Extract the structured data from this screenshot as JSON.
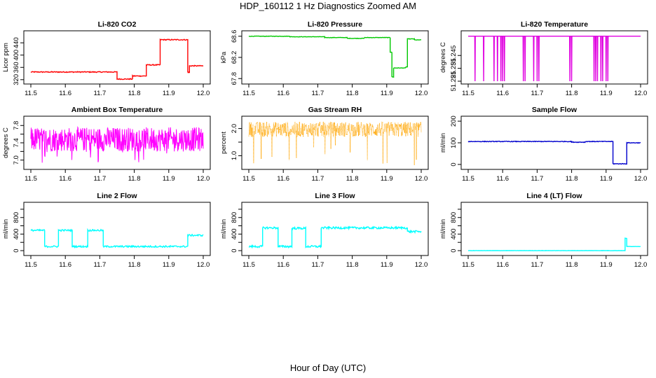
{
  "figure": {
    "title": "HDP_160112  1 Hz Diagnostics Zoomed AM",
    "xlabel": "Hour of Day (UTC)"
  },
  "chart_data": [
    {
      "type": "line",
      "title": "Li-820 CO2",
      "ylabel": "Licor ppm",
      "color": "#ff0000",
      "xlim": [
        11.5,
        12.0
      ],
      "ylim": [
        315,
        470
      ],
      "xticks": [
        11.5,
        11.6,
        11.7,
        11.8,
        11.9,
        12.0
      ],
      "xticklabels": [
        "11.5",
        "11.6",
        "11.7",
        "11.8",
        "11.9",
        "12.0"
      ],
      "yticks": [
        320,
        360,
        400,
        440
      ],
      "yticklabels": [
        "320",
        "360",
        "400",
        "440"
      ],
      "style": "step",
      "noise": 1.5,
      "x": [
        11.5,
        11.75,
        11.75,
        11.795,
        11.795,
        11.835,
        11.835,
        11.875,
        11.875,
        11.955,
        11.955,
        11.96,
        11.96,
        12.0
      ],
      "y": [
        345,
        345,
        322,
        322,
        332,
        332,
        368,
        368,
        450,
        450,
        344,
        344,
        365,
        365
      ]
    },
    {
      "type": "line",
      "title": "Li-820 Pressure",
      "ylabel": "kPa",
      "color": "#00c800",
      "xlim": [
        11.5,
        12.0
      ],
      "ylim": [
        67.75,
        68.65
      ],
      "xticks": [
        11.5,
        11.6,
        11.7,
        11.8,
        11.9,
        12.0
      ],
      "xticklabels": [
        "11.5",
        "11.6",
        "11.7",
        "11.8",
        "11.9",
        "12.0"
      ],
      "yticks": [
        67.8,
        68.2,
        68.6
      ],
      "yticklabels": [
        "67.8",
        "68.2",
        "68.6"
      ],
      "style": "step",
      "noise": 0.004,
      "x": [
        11.5,
        11.62,
        11.62,
        11.72,
        11.72,
        11.785,
        11.785,
        11.835,
        11.835,
        11.91,
        11.91,
        11.915,
        11.915,
        11.92,
        11.92,
        11.955,
        11.955,
        11.96,
        11.96,
        11.98,
        11.98,
        12.0
      ],
      "y": [
        68.6,
        68.6,
        68.59,
        68.59,
        68.575,
        68.575,
        68.56,
        68.56,
        68.575,
        68.575,
        68.3,
        68.3,
        67.83,
        67.83,
        68.0,
        68.0,
        68.02,
        68.02,
        68.55,
        68.55,
        68.53,
        68.53
      ]
    },
    {
      "type": "line",
      "title": "Li-820 Temperature",
      "ylabel": "degrees C",
      "color": "#e000e0",
      "xlim": [
        11.5,
        12.0
      ],
      "ylim": [
        51.225,
        51.262
      ],
      "xticks": [
        11.5,
        11.6,
        11.7,
        11.8,
        11.9,
        12.0
      ],
      "xticklabels": [
        "11.5",
        "11.6",
        "11.7",
        "11.8",
        "11.9",
        "12.0"
      ],
      "yticks": [
        51.225,
        51.235,
        51.245
      ],
      "yticklabels": [
        "51.225",
        "51.235",
        "51.245"
      ],
      "style": "spikes",
      "baseline": 51.26,
      "spike_to": 51.225,
      "spikes_x": [
        11.52,
        11.545,
        11.575,
        11.585,
        11.595,
        11.6,
        11.605,
        11.66,
        11.665,
        11.69,
        11.7,
        11.705,
        11.795,
        11.8,
        11.865,
        11.87,
        11.875,
        11.885,
        11.89,
        11.9,
        11.905
      ]
    },
    {
      "type": "line",
      "title": "Ambient Box Temperature",
      "ylabel": "degrees C",
      "color": "#ff00ff",
      "xlim": [
        11.5,
        12.0
      ],
      "ylim": [
        6.85,
        7.95
      ],
      "xticks": [
        11.5,
        11.6,
        11.7,
        11.8,
        11.9,
        12.0
      ],
      "xticklabels": [
        "11.5",
        "11.6",
        "11.7",
        "11.8",
        "11.9",
        "12.0"
      ],
      "yticks": [
        7.0,
        7.2,
        7.4,
        7.6,
        7.8
      ],
      "yticklabels": [
        "7.0",
        "",
        "7.4",
        "",
        "7.8"
      ],
      "style": "noise",
      "center": 7.48,
      "amp": 0.28,
      "dips": 0.55
    },
    {
      "type": "line",
      "title": "Gas Stream RH",
      "ylabel": "percent",
      "color": "#ffa500",
      "xlim": [
        11.5,
        12.0
      ],
      "ylim": [
        0.6,
        2.35
      ],
      "xticks": [
        11.5,
        11.6,
        11.7,
        11.8,
        11.9,
        12.0
      ],
      "xticklabels": [
        "11.5",
        "11.6",
        "11.7",
        "11.8",
        "11.9",
        "12.0"
      ],
      "yticks": [
        1.0,
        1.5,
        2.0
      ],
      "yticklabels": [
        "1.0",
        "",
        "2.0"
      ],
      "style": "noise",
      "center": 1.97,
      "amp": 0.28,
      "dips": 1.35,
      "dotted": true
    },
    {
      "type": "line",
      "title": "Sample Flow",
      "ylabel": "ml/min",
      "color": "#0000cd",
      "xlim": [
        11.5,
        12.0
      ],
      "ylim": [
        -10,
        210
      ],
      "xticks": [
        11.5,
        11.6,
        11.7,
        11.8,
        11.9,
        12.0
      ],
      "xticklabels": [
        "11.5",
        "11.6",
        "11.7",
        "11.8",
        "11.9",
        "12.0"
      ],
      "yticks": [
        0,
        100,
        200
      ],
      "yticklabels": [
        "0",
        "100",
        "200"
      ],
      "style": "step",
      "noise": 1.5,
      "x": [
        11.5,
        11.8,
        11.8,
        11.84,
        11.84,
        11.92,
        11.92,
        11.96,
        11.96,
        12.0
      ],
      "y": [
        106,
        106,
        103,
        103,
        106,
        106,
        3,
        3,
        100,
        100
      ]
    },
    {
      "type": "line",
      "title": "Line 2 Flow",
      "ylabel": "ml/min",
      "color": "#00ffff",
      "xlim": [
        11.5,
        12.0
      ],
      "ylim": [
        -50,
        1100
      ],
      "xticks": [
        11.5,
        11.6,
        11.7,
        11.8,
        11.9,
        12.0
      ],
      "xticklabels": [
        "11.5",
        "11.6",
        "11.7",
        "11.8",
        "11.9",
        "12.0"
      ],
      "yticks": [
        0,
        200,
        400,
        600,
        800,
        1000
      ],
      "yticklabels": [
        "0",
        "",
        "400",
        "",
        "800",
        ""
      ],
      "style": "step",
      "noise": 20,
      "x": [
        11.5,
        11.54,
        11.54,
        11.58,
        11.58,
        11.62,
        11.62,
        11.665,
        11.665,
        11.71,
        11.71,
        11.955,
        11.955,
        12.0
      ],
      "y": [
        490,
        490,
        100,
        100,
        490,
        490,
        100,
        100,
        490,
        490,
        100,
        100,
        370,
        370
      ]
    },
    {
      "type": "line",
      "title": "Line 3 Flow",
      "ylabel": "ml/min",
      "color": "#00ffff",
      "xlim": [
        11.5,
        12.0
      ],
      "ylim": [
        -50,
        1100
      ],
      "xticks": [
        11.5,
        11.6,
        11.7,
        11.8,
        11.9,
        12.0
      ],
      "xticklabels": [
        "11.5",
        "11.6",
        "11.7",
        "11.8",
        "11.9",
        "12.0"
      ],
      "yticks": [
        0,
        200,
        400,
        600,
        800,
        1000
      ],
      "yticklabels": [
        "0",
        "",
        "400",
        "",
        "800",
        ""
      ],
      "style": "step",
      "noise": 25,
      "x": [
        11.5,
        11.54,
        11.54,
        11.585,
        11.585,
        11.625,
        11.625,
        11.665,
        11.665,
        11.71,
        11.71,
        11.96,
        11.96,
        12.0
      ],
      "y": [
        100,
        100,
        550,
        550,
        100,
        100,
        540,
        540,
        100,
        100,
        550,
        550,
        460,
        460
      ]
    },
    {
      "type": "line",
      "title": "Line 4 (LT) Flow",
      "ylabel": "ml/min",
      "color": "#00ffff",
      "xlim": [
        11.5,
        12.0
      ],
      "ylim": [
        -50,
        1100
      ],
      "xticks": [
        11.5,
        11.6,
        11.7,
        11.8,
        11.9,
        12.0
      ],
      "xticklabels": [
        "11.5",
        "11.6",
        "11.7",
        "11.8",
        "11.9",
        "12.0"
      ],
      "yticks": [
        0,
        200,
        400,
        600,
        800,
        1000
      ],
      "yticklabels": [
        "0",
        "",
        "400",
        "",
        "800",
        ""
      ],
      "style": "step",
      "noise": 3,
      "x": [
        11.5,
        11.955,
        11.955,
        11.96,
        11.96,
        12.0
      ],
      "y": [
        0,
        0,
        300,
        300,
        100,
        100
      ]
    }
  ]
}
